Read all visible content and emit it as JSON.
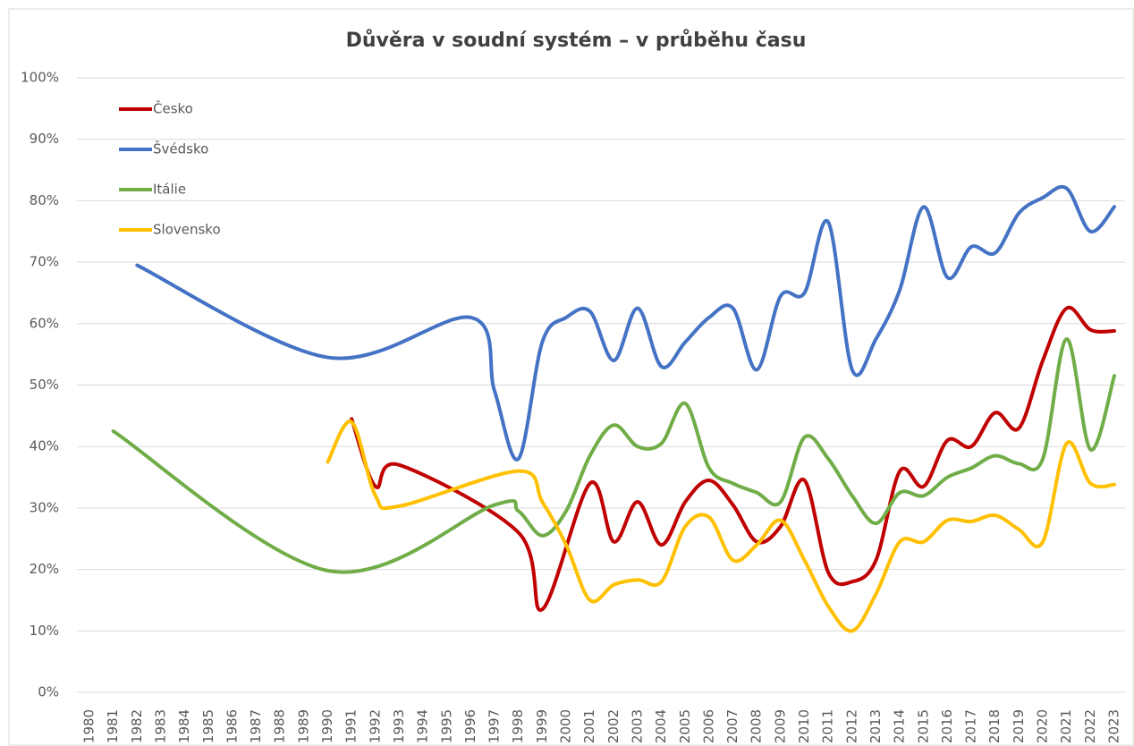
{
  "chart_data": {
    "type": "line",
    "title": "Důvěra v soudní systém – v průběhu času",
    "xlim": [
      1980,
      2023
    ],
    "xticks": [
      1980,
      1981,
      1982,
      1983,
      1984,
      1985,
      1986,
      1987,
      1988,
      1989,
      1990,
      1991,
      1992,
      1993,
      1994,
      1995,
      1996,
      1997,
      1998,
      1999,
      2000,
      2001,
      2002,
      2003,
      2004,
      2005,
      2006,
      2007,
      2008,
      2009,
      2010,
      2011,
      2012,
      2013,
      2014,
      2015,
      2016,
      2017,
      2018,
      2019,
      2020,
      2021,
      2022,
      2023
    ],
    "ylim": [
      0,
      100
    ],
    "yticks": [
      {
        "value": 0,
        "label": "0%"
      },
      {
        "value": 10,
        "label": "10%"
      },
      {
        "value": 20,
        "label": "20%"
      },
      {
        "value": 30,
        "label": "30%"
      },
      {
        "value": 40,
        "label": "40%"
      },
      {
        "value": 50,
        "label": "50%"
      },
      {
        "value": 60,
        "label": "60%"
      },
      {
        "value": 70,
        "label": "70%"
      },
      {
        "value": 80,
        "label": "80%"
      },
      {
        "value": 90,
        "label": "90%"
      },
      {
        "value": 100,
        "label": "100%"
      }
    ],
    "grid": true,
    "smooth": true,
    "legend": "top-left",
    "series": [
      {
        "name": "Česko",
        "color": "#c00000",
        "x": [
          1991,
          1992,
          1993,
          1998,
          1999,
          2001,
          2002,
          2003,
          2004,
          2005,
          2006,
          2007,
          2008,
          2009,
          2010,
          2011,
          2012,
          2013,
          2014,
          2015,
          2016,
          2017,
          2018,
          2019,
          2020,
          2021,
          2022,
          2023
        ],
        "values": [
          44.5,
          33.5,
          37,
          26,
          13.5,
          34,
          24.5,
          31,
          24,
          31,
          34.5,
          30.5,
          24.5,
          27,
          34.5,
          19.5,
          18,
          21.5,
          36,
          33.5,
          41,
          40,
          45.5,
          43,
          54,
          62.5,
          59,
          58.8
        ]
      },
      {
        "name": "Švédsko",
        "color": "#4472c4",
        "x": [
          1982,
          1990,
          1996,
          1997,
          1998,
          1999,
          2000,
          2001,
          2002,
          2003,
          2004,
          2005,
          2006,
          2007,
          2008,
          2009,
          2010,
          2011,
          2012,
          2013,
          2014,
          2015,
          2016,
          2017,
          2018,
          2019,
          2020,
          2021,
          2022,
          2023
        ],
        "values": [
          69.5,
          54.5,
          61,
          49,
          38,
          57,
          61,
          62,
          54,
          62.5,
          53,
          57,
          61,
          62.5,
          52.5,
          64.5,
          65,
          76.5,
          52.5,
          57.5,
          65.5,
          79,
          67.5,
          72.5,
          71.5,
          78,
          80.5,
          82,
          75,
          79
        ]
      },
      {
        "name": "Itálie",
        "color": "#70ad47",
        "x": [
          1981,
          1990,
          1997,
          1998,
          1999,
          2000,
          2001,
          2002,
          2003,
          2004,
          2005,
          2006,
          2007,
          2008,
          2009,
          2010,
          2011,
          2012,
          2013,
          2014,
          2015,
          2016,
          2017,
          2018,
          2019,
          2020,
          2021,
          2022,
          2023
        ],
        "values": [
          42.5,
          19.8,
          30.5,
          29.5,
          25.5,
          29.5,
          38.5,
          43.5,
          40,
          40.5,
          47,
          36.5,
          34,
          32.5,
          31,
          41.5,
          38,
          32,
          27.5,
          32.5,
          32,
          35,
          36.5,
          38.5,
          37.2,
          38,
          57.5,
          39.5,
          51.5
        ]
      },
      {
        "name": "Slovensko",
        "color": "#ffc000",
        "x": [
          1990,
          1991,
          1992,
          1993,
          1998,
          1999,
          2000,
          2001,
          2002,
          2003,
          2004,
          2005,
          2006,
          2007,
          2008,
          2009,
          2010,
          2011,
          2012,
          2013,
          2014,
          2015,
          2016,
          2017,
          2018,
          2019,
          2020,
          2021,
          2022,
          2023
        ],
        "values": [
          37.5,
          44,
          32,
          30.3,
          36,
          31,
          24,
          15,
          17.5,
          18.3,
          18,
          27,
          28.5,
          21.5,
          24,
          28,
          21.5,
          14,
          10,
          16,
          24.5,
          24.5,
          28,
          27.8,
          28.8,
          26.5,
          24.5,
          40.5,
          34,
          33.8
        ]
      }
    ]
  }
}
